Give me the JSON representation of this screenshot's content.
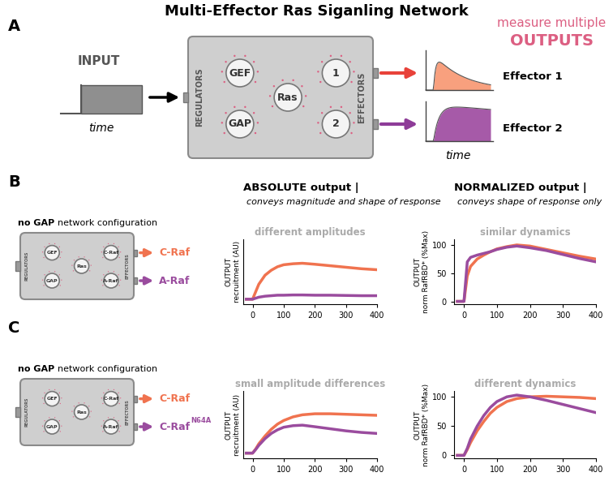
{
  "diagram": {
    "title": "Multi-Effector Ras Siganling Network",
    "panels": {
      "A": {
        "label": "A",
        "input": "INPUT",
        "input_axis": "time",
        "regulators": "REGULATORS",
        "effectors": "EFFECTORS",
        "knobs": {
          "gef": "GEF",
          "gap": "GAP",
          "ras": "Ras",
          "effector1": "1",
          "effector2": "2"
        },
        "outputs_note": "measure multiple",
        "outputs_title": "OUTPUTS",
        "output_axis": "time",
        "outputs": [
          "Effector 1",
          "Effector 2"
        ]
      },
      "B": {
        "label": "B",
        "config_bold": "no GAP",
        "config": "network configuration",
        "regulators": "REGULATORS",
        "effectors": "EFFECTORS",
        "knobs": {
          "gef": "GEF",
          "gap": "GAP",
          "ras": "Ras",
          "effector1": "C-Raf",
          "effector2": "A-Raf"
        },
        "outputs": [
          {
            "text": "C-Raf",
            "color": "#f0734f"
          },
          {
            "text": "A-Raf",
            "color": "#9a4c9e"
          }
        ]
      },
      "C": {
        "label": "C",
        "config_bold": "no GAP",
        "config": "network configuration",
        "regulators": "REGULATORS",
        "effectors": "EFFECTORS",
        "knobs": {
          "gef": "GEF",
          "gap": "GAP",
          "ras": "Ras",
          "effector1": "C-Raf",
          "effector2": "A-Raf"
        },
        "outputs": [
          {
            "text": "C-Raf",
            "color": "#f0734f"
          },
          {
            "text": "C-Raf",
            "superscript": "N64A",
            "color": "#9a4c9e"
          }
        ]
      }
    },
    "headers": [
      {
        "bold": "ABSOLUTE output |",
        "italic": "conveys magnitude and shape of response"
      },
      {
        "bold": "NORMALIZED output |",
        "italic": "conveys shape of response only"
      }
    ]
  },
  "chart_data": [
    {
      "type": "line",
      "panel": "B",
      "annotation": "different amplitudes",
      "ylabel_title": "OUTPUT",
      "ylabel": "recruitment (AU)",
      "x": [
        -20,
        0,
        10,
        20,
        40,
        60,
        80,
        100,
        130,
        160,
        200,
        250,
        300,
        350,
        400
      ],
      "xlim": [
        -30,
        400
      ],
      "xticks": [
        0,
        100,
        200,
        300,
        400
      ],
      "ylim": [
        -1,
        12
      ],
      "tick_labels": "x",
      "series": [
        {
          "name": "C-Raf",
          "color": "#f0734f",
          "values": [
            0,
            0,
            1.5,
            3,
            4.8,
            5.8,
            6.5,
            6.9,
            7.1,
            7.2,
            7.0,
            6.7,
            6.4,
            6.1,
            5.9
          ]
        },
        {
          "name": "A-Raf",
          "color": "#9a4c9e",
          "values": [
            0,
            0,
            0.2,
            0.4,
            0.6,
            0.7,
            0.8,
            0.8,
            0.85,
            0.85,
            0.8,
            0.8,
            0.75,
            0.7,
            0.7
          ]
        }
      ]
    },
    {
      "type": "line",
      "panel": "B",
      "annotation": "similar dynamics",
      "ylabel_title": "OUTPUT",
      "ylabel": "norm RafRBD* (%Max)",
      "x": [
        -20,
        0,
        10,
        20,
        40,
        60,
        80,
        100,
        130,
        160,
        200,
        250,
        300,
        350,
        400
      ],
      "xlim": [
        -30,
        400
      ],
      "xticks": [
        0,
        100,
        200,
        300,
        400
      ],
      "ylim": [
        -5,
        110
      ],
      "yticks": [
        0,
        50,
        100
      ],
      "series": [
        {
          "name": "C-Raf",
          "color": "#f0734f",
          "values": [
            0,
            0,
            45,
            62,
            75,
            82,
            88,
            93,
            97,
            100,
            98,
            92,
            86,
            80,
            75
          ]
        },
        {
          "name": "A-Raf",
          "color": "#9a4c9e",
          "values": [
            0,
            0,
            70,
            78,
            82,
            85,
            88,
            92,
            96,
            98,
            95,
            90,
            83,
            76,
            70
          ]
        }
      ]
    },
    {
      "type": "line",
      "panel": "C",
      "annotation": "small amplitude differences",
      "ylabel_title": "OUTPUT",
      "ylabel": "recruitment (AU)",
      "x": [
        -20,
        0,
        10,
        20,
        40,
        60,
        80,
        100,
        130,
        160,
        200,
        250,
        300,
        350,
        400
      ],
      "xlim": [
        -30,
        400
      ],
      "xticks": [
        0,
        100,
        200,
        300,
        400
      ],
      "ylim": [
        -1,
        12
      ],
      "tick_labels": "x",
      "series": [
        {
          "name": "C-Raf",
          "color": "#f0734f",
          "values": [
            0,
            0,
            0.8,
            1.8,
            3.3,
            4.6,
            5.6,
            6.3,
            7.0,
            7.4,
            7.6,
            7.6,
            7.5,
            7.4,
            7.3
          ]
        },
        {
          "name": "C-Raf N64A",
          "color": "#9a4c9e",
          "values": [
            0,
            0,
            0.7,
            1.5,
            2.8,
            3.8,
            4.5,
            5.0,
            5.3,
            5.4,
            5.1,
            4.7,
            4.3,
            4.0,
            3.8
          ]
        }
      ]
    },
    {
      "type": "line",
      "panel": "C",
      "annotation": "different dynamics",
      "ylabel_title": "OUTPUT",
      "ylabel": "norm RafRBD* (%Max)",
      "x": [
        -20,
        0,
        10,
        20,
        40,
        60,
        80,
        100,
        130,
        160,
        200,
        250,
        300,
        350,
        400
      ],
      "xlim": [
        -30,
        400
      ],
      "xticks": [
        0,
        100,
        200,
        300,
        400
      ],
      "ylim": [
        -5,
        110
      ],
      "yticks": [
        0,
        50,
        100
      ],
      "series": [
        {
          "name": "C-Raf",
          "color": "#f0734f",
          "values": [
            0,
            0,
            10,
            22,
            42,
            58,
            72,
            82,
            92,
            97,
            100,
            101,
            100,
            99,
            97
          ]
        },
        {
          "name": "C-Raf N64A",
          "color": "#9a4c9e",
          "values": [
            0,
            0,
            12,
            28,
            50,
            68,
            82,
            92,
            100,
            103,
            100,
            94,
            87,
            80,
            73
          ]
        }
      ]
    }
  ]
}
